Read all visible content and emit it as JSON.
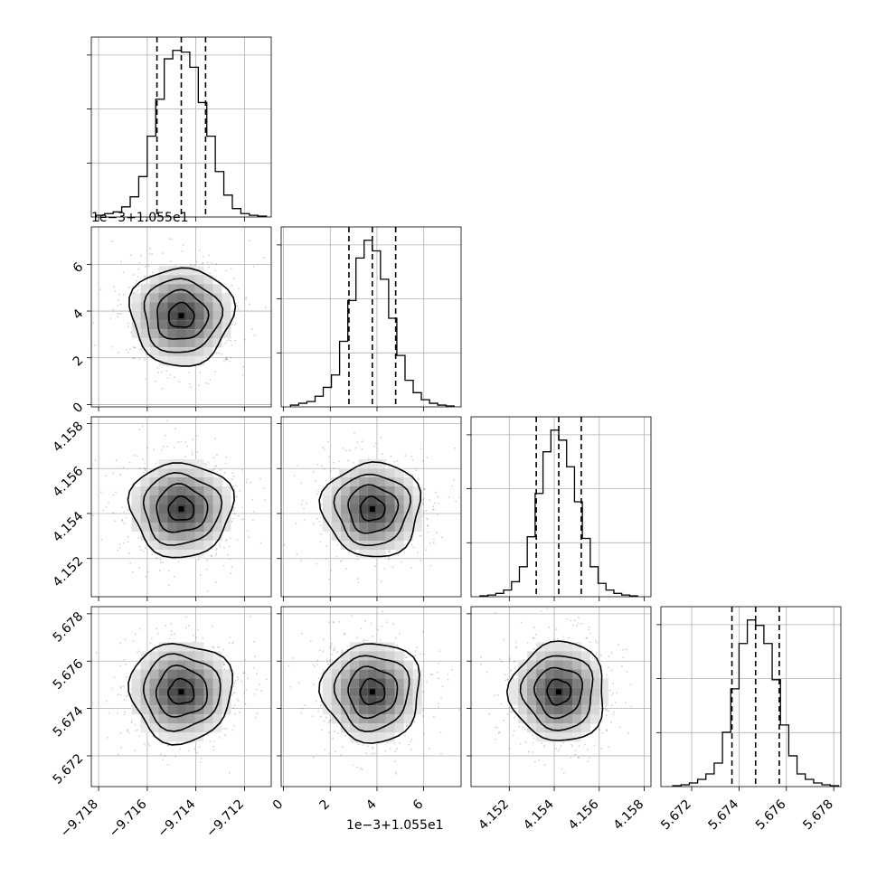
{
  "colors": {
    "line": "#000000",
    "grid": "#b0b0b0",
    "points": "#000000"
  },
  "offset_labels": {
    "p1_y": "1e−3+1.055e1",
    "p1_x": "1e−3+1.055e1"
  },
  "chart_data": {
    "type": "corner",
    "grid": true,
    "parameters": [
      {
        "center": -9.7146,
        "sigma": 0.001,
        "quantiles": [
          -9.7156,
          -9.7146,
          -9.7136
        ],
        "range": [
          -9.7183,
          -9.7109
        ],
        "ticks": [
          -9.718,
          -9.716,
          -9.714,
          -9.712
        ],
        "ticklabels": [
          "−9.718",
          "−9.716",
          "−9.714",
          "−9.712"
        ],
        "offset_label": ""
      },
      {
        "center": 3.8,
        "sigma": 1.0,
        "quantiles": [
          2.8,
          3.8,
          4.8
        ],
        "range": [
          -0.1,
          7.6
        ],
        "ticks": [
          0,
          2,
          4,
          6
        ],
        "ticklabels": [
          "0",
          "2",
          "4",
          "6"
        ],
        "offset_label": "1e−3+1.055e1"
      },
      {
        "center": 4.1542,
        "sigma": 0.001,
        "quantiles": [
          4.1532,
          4.1542,
          4.1552
        ],
        "range": [
          4.1503,
          4.1583
        ],
        "ticks": [
          4.152,
          4.154,
          4.156,
          4.158
        ],
        "ticklabels": [
          "4.152",
          "4.154",
          "4.156",
          "4.158"
        ],
        "offset_label": ""
      },
      {
        "center": 5.6747,
        "sigma": 0.001,
        "quantiles": [
          5.6737,
          5.6747,
          5.6757
        ],
        "range": [
          5.6707,
          5.6783
        ],
        "ticks": [
          5.672,
          5.674,
          5.676,
          5.678
        ],
        "ticklabels": [
          "5.672",
          "5.674",
          "5.676",
          "5.678"
        ],
        "offset_label": ""
      }
    ],
    "histograms": [
      [
        1,
        2,
        3,
        6,
        12,
        24,
        48,
        70,
        94,
        99,
        98,
        89,
        68,
        48,
        27,
        13,
        5,
        2,
        1,
        0.5
      ],
      [
        1,
        2,
        3,
        6,
        11,
        18,
        37,
        60,
        84,
        94,
        88,
        72,
        50,
        29,
        15,
        8,
        4,
        2,
        1,
        0.5
      ],
      [
        0.5,
        1,
        2,
        4,
        9,
        18,
        36,
        62,
        87,
        100,
        94,
        78,
        57,
        35,
        18,
        8,
        4,
        2,
        1,
        0.5
      ],
      [
        0.5,
        1,
        2,
        4,
        7,
        13,
        30,
        54,
        79,
        92,
        89,
        79,
        59,
        34,
        17,
        7,
        4,
        2,
        1,
        0.5
      ]
    ],
    "contour_levels_sigma": [
      0.5,
      1.0,
      1.5,
      2.0
    ]
  }
}
